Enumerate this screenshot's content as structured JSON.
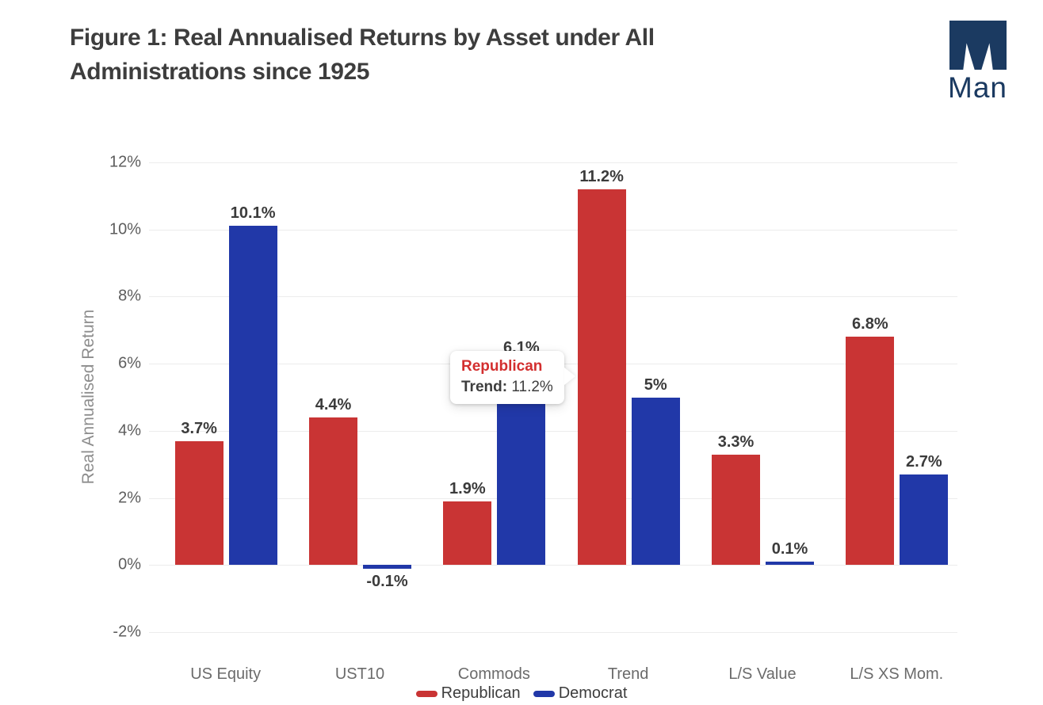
{
  "header": {
    "title_line1": "Figure 1: Real Annualised Returns by Asset under All",
    "title_line2": "Administrations since 1925",
    "logo_text": "Man"
  },
  "colors": {
    "republican": "#c93434",
    "democrat": "#2138a8",
    "brand_navy": "#1b3a61",
    "tooltip_series_red": "#d32f2f",
    "title_text": "#3d3d3d",
    "grid": "#ececec"
  },
  "chart_data": {
    "type": "bar",
    "title": "Figure 1: Real Annualised Returns by Asset under All Administrations since 1925",
    "categories": [
      "US Equity",
      "UST10",
      "Commods",
      "Trend",
      "L/S Value",
      "L/S XS Mom."
    ],
    "series": [
      {
        "name": "Republican",
        "color": "#c93434",
        "values": [
          3.7,
          4.4,
          1.9,
          11.2,
          3.3,
          6.8
        ],
        "labels": [
          "3.7%",
          "4.4%",
          "1.9%",
          "11.2%",
          "3.3%",
          "6.8%"
        ]
      },
      {
        "name": "Democrat",
        "color": "#2138a8",
        "values": [
          10.1,
          -0.1,
          6.1,
          5,
          0.1,
          2.7
        ],
        "labels": [
          "10.1%",
          "-0.1%",
          "6.1%",
          "5%",
          "0.1%",
          "2.7%"
        ]
      }
    ],
    "xlabel": "",
    "ylabel": "Real Annualised Return",
    "ylim": [
      -2,
      12
    ],
    "yticks": [
      {
        "value": 12,
        "label": "12%"
      },
      {
        "value": 10,
        "label": "10%"
      },
      {
        "value": 8,
        "label": "8%"
      },
      {
        "value": 6,
        "label": "6%"
      },
      {
        "value": 4,
        "label": "4%"
      },
      {
        "value": 2,
        "label": "2%"
      },
      {
        "value": 0,
        "label": "0%"
      },
      {
        "value": -2,
        "label": "-2%"
      }
    ],
    "grid": true,
    "legend_position": "bottom"
  },
  "tooltip": {
    "series_label": "Republican",
    "row_label": "Trend:",
    "row_value": "11.2%"
  },
  "legend": [
    {
      "label": "Republican",
      "color": "#c93434"
    },
    {
      "label": "Democrat",
      "color": "#2138a8"
    }
  ]
}
